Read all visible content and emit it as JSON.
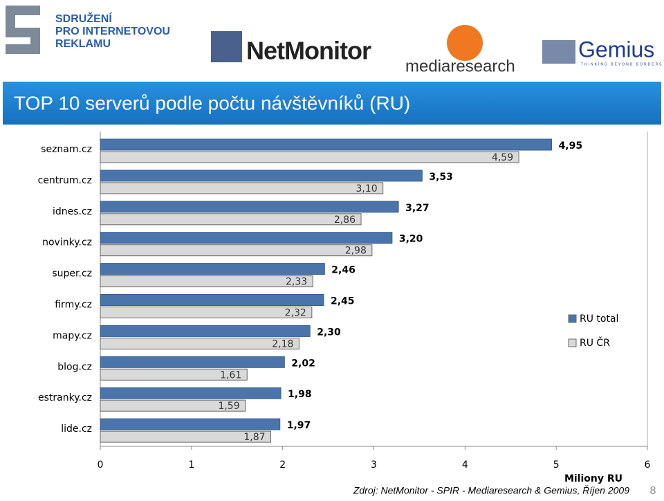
{
  "header": {
    "org": [
      "SDRUŽENÍ",
      "PRO INTERNETOVOU",
      "REKLAMU"
    ],
    "logos": [
      "NetMonitor",
      "mediaresearch",
      "Gemius",
      "THINKING BEYOND BORDERS"
    ]
  },
  "chart_data": {
    "type": "bar",
    "orientation": "horizontal",
    "title": "TOP 10 serverů podle počtu návštěvníků (RU)",
    "categories": [
      "seznam.cz",
      "centrum.cz",
      "idnes.cz",
      "novinky.cz",
      "super.cz",
      "firmy.cz",
      "mapy.cz",
      "blog.cz",
      "estranky.cz",
      "lide.cz"
    ],
    "series": [
      {
        "name": "RU total",
        "color": "#4a74aa",
        "values": [
          4.95,
          3.53,
          3.27,
          3.2,
          2.46,
          2.45,
          2.3,
          2.02,
          1.98,
          1.97
        ],
        "value_labels": [
          "4,95",
          "3,53",
          "3,27",
          "3,20",
          "2,46",
          "2,45",
          "2,30",
          "2,02",
          "1,98",
          "1,97"
        ]
      },
      {
        "name": "RU ČR",
        "color": "#d9d9d9",
        "values": [
          4.59,
          3.1,
          2.86,
          2.98,
          2.33,
          2.32,
          2.18,
          1.61,
          1.59,
          1.87
        ],
        "value_labels": [
          "4,59",
          "3,10",
          "2,86",
          "2,98",
          "2,33",
          "2,32",
          "2,18",
          "1,61",
          "1,59",
          "1,87"
        ]
      }
    ],
    "xlim": [
      0,
      6
    ],
    "xticks": [
      0,
      1,
      2,
      3,
      4,
      5,
      6
    ],
    "x_label": "Miliony RU",
    "legend": "right",
    "source": "Zdroj: NetMonitor - SPIR - Mediaresearch & Gemius, Říjen 2009",
    "page": "8"
  }
}
